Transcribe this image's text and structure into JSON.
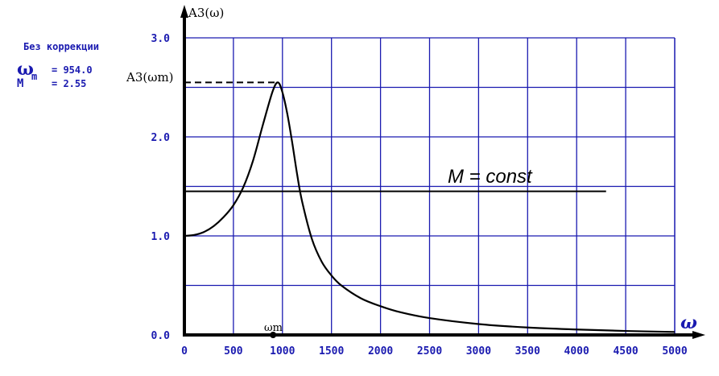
{
  "info": {
    "header": "Без коррекции",
    "omega_symbol": "ω",
    "omega_sub": "m",
    "omega_eq": "= 954.0",
    "m_symbol": "M",
    "m_eq": "= 2.55"
  },
  "chart_data": {
    "type": "line",
    "ylabel": "A3(ω)",
    "xlabel": "ω",
    "xlim": [
      0,
      5000
    ],
    "ylim": [
      0,
      3.0
    ],
    "x_ticks": [
      0,
      500,
      1000,
      1500,
      2000,
      2500,
      3000,
      3500,
      4000,
      4500,
      5000
    ],
    "x_tick_labels": [
      "0",
      "500",
      "1000",
      "1500",
      "2000",
      "2500",
      "3000",
      "3500",
      "4000",
      "4500",
      "5000"
    ],
    "y_ticks": [
      0,
      1.0,
      2.0,
      3.0
    ],
    "y_tick_labels": [
      "0.0",
      "1.0",
      "2.0",
      "3.0"
    ],
    "grid": true,
    "series": [
      {
        "x": [
          0,
          100,
          200,
          300,
          400,
          500,
          600,
          700,
          800,
          900,
          954,
          1000,
          1050,
          1100,
          1150,
          1200,
          1300,
          1400,
          1500,
          1600,
          1800,
          2000,
          2200,
          2500,
          3000,
          3500,
          4000,
          4500,
          5000
        ],
        "y": [
          1.0,
          1.01,
          1.04,
          1.1,
          1.19,
          1.31,
          1.49,
          1.76,
          2.12,
          2.46,
          2.55,
          2.45,
          2.23,
          1.94,
          1.62,
          1.35,
          0.97,
          0.74,
          0.6,
          0.5,
          0.37,
          0.29,
          0.23,
          0.17,
          0.11,
          0.075,
          0.055,
          0.04,
          0.03
        ]
      },
      {
        "x": [
          0,
          4300
        ],
        "y": [
          1.45,
          1.45
        ]
      }
    ],
    "annotations": {
      "peak_label": "A3(ωm)",
      "peak_x": 954,
      "peak_y": 2.55,
      "xmark_label": "ωm",
      "const_label": "M = const"
    }
  },
  "colors": {
    "grid": "#1a1ab0",
    "axis": "#000000",
    "curve": "#000000",
    "label": "#1a1ab0"
  }
}
